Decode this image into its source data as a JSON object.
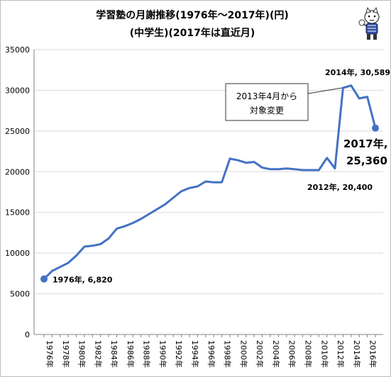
{
  "title": {
    "line1": "学習塾の月謝推移(1976年～2017年)(円)",
    "line2": "(中学生)(2017年は直近月)"
  },
  "icon": "cartoon-cat-mascot-icon",
  "colors": {
    "line": "#4472c4",
    "grid": "#d9d9d9",
    "axis": "#808080"
  },
  "chart_data": {
    "type": "line",
    "title": "学習塾の月謝推移(1976年～2017年)(円)",
    "subtitle": "(中学生)(2017年は直近月)",
    "xlabel": "",
    "ylabel": "",
    "ylim": [
      0,
      35000
    ],
    "yticks": [
      "0",
      "5000",
      "10000",
      "15000",
      "20000",
      "25000",
      "30000",
      "35000"
    ],
    "xticks": [
      "1976年",
      "1978年",
      "1980年",
      "1982年",
      "1984年",
      "1986年",
      "1988年",
      "1990年",
      "1992年",
      "1994年",
      "1996年",
      "1998年",
      "2000年",
      "2002年",
      "2004年",
      "2006年",
      "2008年",
      "2010年",
      "2012年",
      "2014年",
      "2016年"
    ],
    "grid": true,
    "legend": "none",
    "x": [
      1976,
      1977,
      1978,
      1979,
      1980,
      1981,
      1982,
      1983,
      1984,
      1985,
      1986,
      1987,
      1988,
      1989,
      1990,
      1991,
      1992,
      1993,
      1994,
      1995,
      1996,
      1997,
      1998,
      1999,
      2000,
      2001,
      2002,
      2003,
      2004,
      2005,
      2006,
      2007,
      2008,
      2009,
      2010,
      2011,
      2012,
      2013,
      2014,
      2015,
      2016,
      2017
    ],
    "values": [
      6820,
      7800,
      8300,
      8800,
      9700,
      10800,
      10900,
      11100,
      11800,
      13000,
      13300,
      13700,
      14200,
      14800,
      15400,
      16000,
      16800,
      17600,
      18000,
      18200,
      18800,
      18700,
      18700,
      21600,
      21400,
      21100,
      21200,
      20500,
      20300,
      20300,
      20400,
      20300,
      20200,
      20200,
      20200,
      21700,
      20400,
      30300,
      30589,
      29000,
      29200,
      25360
    ],
    "highlight_points": [
      {
        "x": 1976,
        "y": 6820
      },
      {
        "x": 2017,
        "y": 25360
      }
    ],
    "annotations": [
      {
        "text": "1976年, 6,820"
      },
      {
        "text": "2014年, 30,589"
      },
      {
        "text": "2012年, 20,400"
      },
      {
        "text": "2017年,",
        "text2": "25,360"
      },
      {
        "text": "2013年4月から",
        "text2": "対象変更"
      }
    ]
  }
}
